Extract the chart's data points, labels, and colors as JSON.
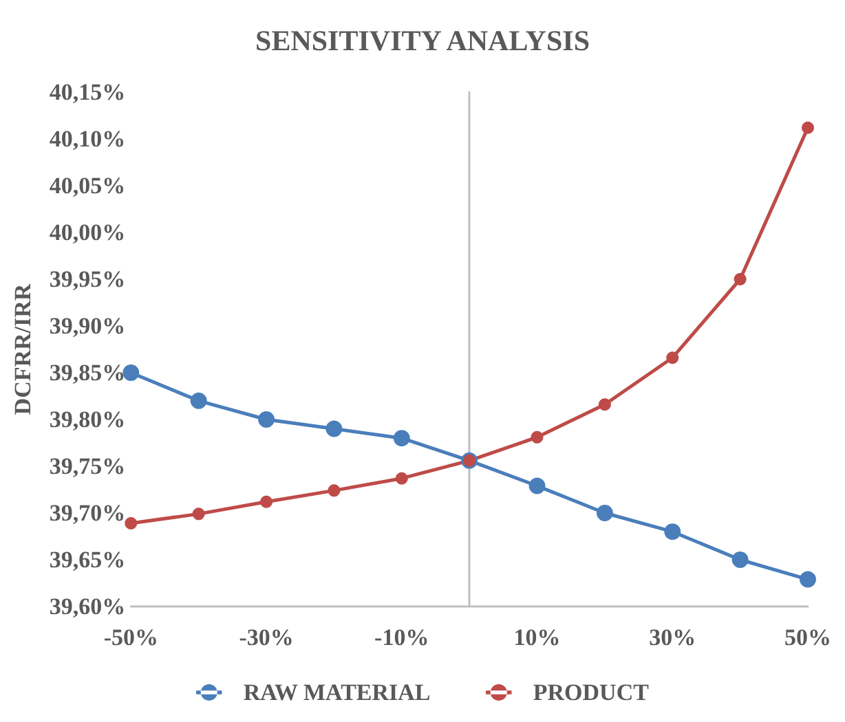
{
  "chart_data": {
    "type": "line",
    "title": "SENSITIVITY ANALYSIS",
    "ylabel": "DCFRR/IRR",
    "x": [
      -50,
      -40,
      -30,
      -20,
      -10,
      0,
      10,
      20,
      30,
      40,
      50
    ],
    "xlim": [
      -50,
      50
    ],
    "xticks": [
      {
        "value": -50,
        "label": "-50%"
      },
      {
        "value": -30,
        "label": "-30%"
      },
      {
        "value": -10,
        "label": "-10%"
      },
      {
        "value": 10,
        "label": "10%"
      },
      {
        "value": 30,
        "label": "30%"
      },
      {
        "value": 50,
        "label": "50%"
      }
    ],
    "ylim": [
      39.6,
      40.15
    ],
    "yticks": [
      {
        "value": 39.6,
        "label": "39,60%"
      },
      {
        "value": 39.65,
        "label": "39,65%"
      },
      {
        "value": 39.7,
        "label": "39,70%"
      },
      {
        "value": 39.75,
        "label": "39,75%"
      },
      {
        "value": 39.8,
        "label": "39,80%"
      },
      {
        "value": 39.85,
        "label": "39,85%"
      },
      {
        "value": 39.9,
        "label": "39,90%"
      },
      {
        "value": 39.95,
        "label": "39,95%"
      },
      {
        "value": 40.0,
        "label": "40,00%"
      },
      {
        "value": 40.05,
        "label": "40,05%"
      },
      {
        "value": 40.1,
        "label": "40,10%"
      },
      {
        "value": 40.15,
        "label": "40,15%"
      }
    ],
    "series": [
      {
        "name": "RAW MATERIAL",
        "color": "#4a7ebb",
        "values": [
          39.85,
          39.82,
          39.8,
          39.79,
          39.78,
          39.756,
          39.729,
          39.7,
          39.68,
          39.65,
          39.629
        ]
      },
      {
        "name": "PRODUCT",
        "color": "#be4b48",
        "values": [
          39.689,
          39.699,
          39.712,
          39.724,
          39.737,
          39.756,
          39.781,
          39.816,
          39.866,
          39.95,
          40.112
        ]
      }
    ],
    "grid": false,
    "legend": "bottom",
    "marker": "circle",
    "line_style": "solid"
  }
}
